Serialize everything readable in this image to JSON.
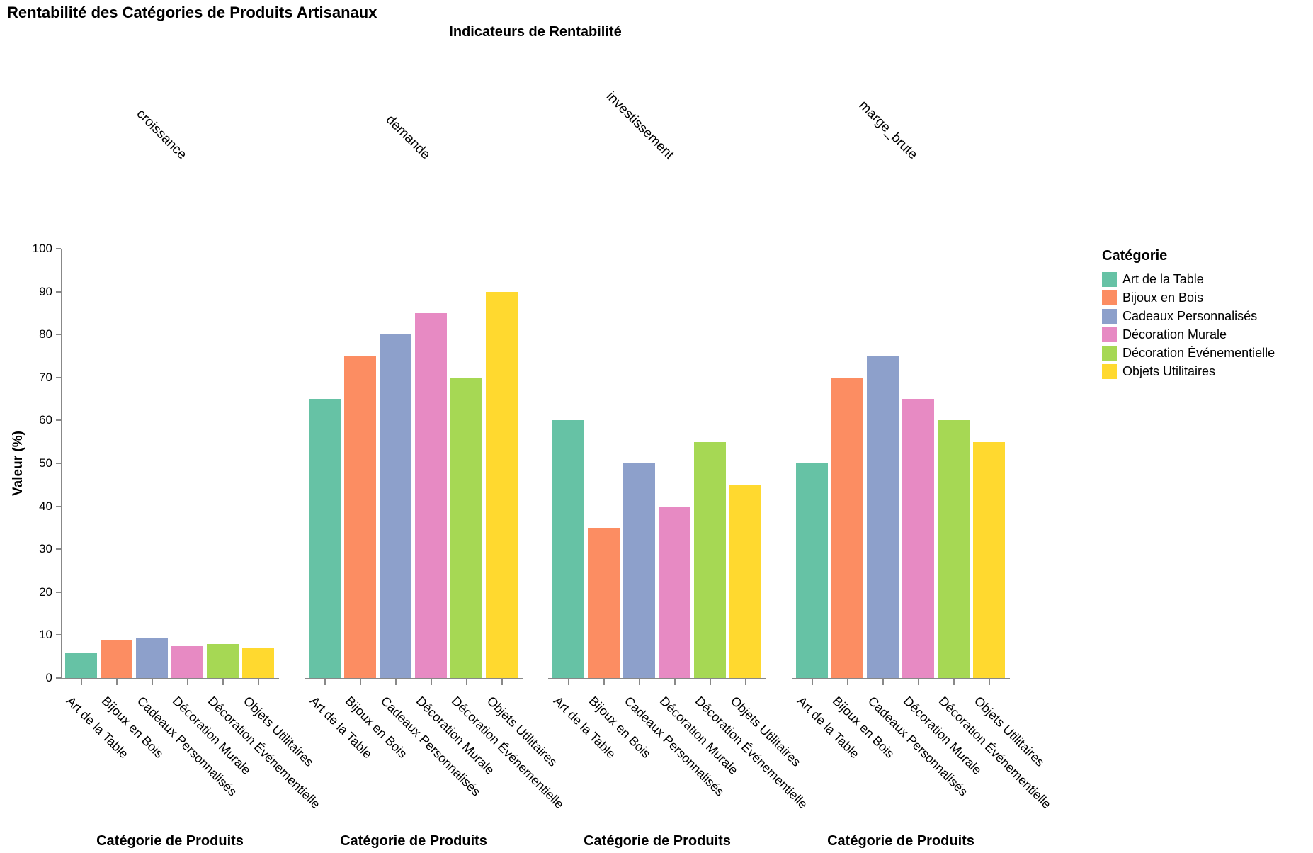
{
  "chart_data": {
    "type": "bar",
    "title": "Rentabilité des Catégories de Produits Artisanaux",
    "subtitle": "Indicateurs de Rentabilité",
    "facets": [
      "croissance",
      "demande",
      "investissement",
      "marge_brute"
    ],
    "categories": [
      "Art de la Table",
      "Bijoux en Bois",
      "Cadeaux Personnalisés",
      "Décoration Murale",
      "Décoration Événementielle",
      "Objets Utilitaires"
    ],
    "series": [
      {
        "name": "croissance",
        "values": [
          5.7,
          8.8,
          9.4,
          7.5,
          8.0,
          7.0
        ]
      },
      {
        "name": "demande",
        "values": [
          65,
          75,
          80,
          85,
          70,
          90
        ]
      },
      {
        "name": "investissement",
        "values": [
          60,
          35,
          50,
          40,
          55,
          45
        ]
      },
      {
        "name": "marge_brute",
        "values": [
          50,
          70,
          75,
          65,
          60,
          55
        ]
      }
    ],
    "xlabel": "Catégorie de Produits",
    "ylabel": "Valeur (%)",
    "ylim": [
      0,
      100
    ],
    "ytick_step": 10,
    "grid": false,
    "legend": {
      "title": "Catégorie",
      "position": "right",
      "entries": [
        "Art de la Table",
        "Bijoux en Bois",
        "Cadeaux Personnalisés",
        "Décoration Murale",
        "Décoration Événementielle",
        "Objets Utilitaires"
      ]
    },
    "palette": [
      "#66c2a5",
      "#fc8d62",
      "#8da0cb",
      "#e78ac3",
      "#a6d854",
      "#ffd92f"
    ],
    "axis_color": "#888888",
    "text_color": "#000000"
  }
}
